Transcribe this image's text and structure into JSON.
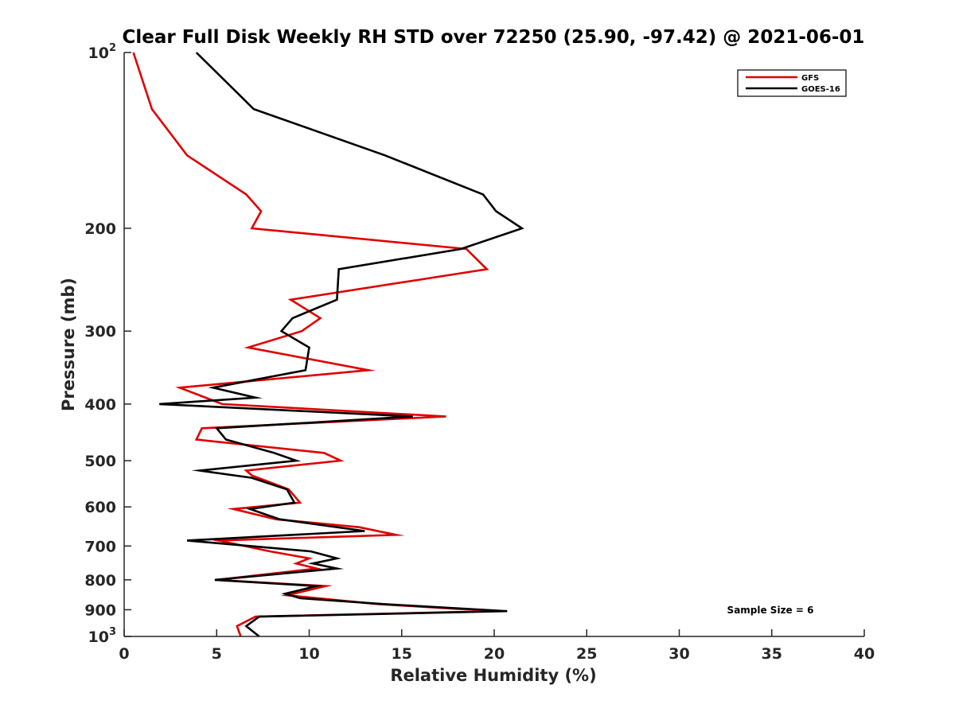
{
  "chart_data": {
    "type": "line",
    "title": "Clear Full Disk Weekly RH STD over 72250 (25.90, -97.42) @ 2021-06-01",
    "xlabel": "Relative Humidity (%)",
    "ylabel": "Pressure (mb)",
    "xlim": [
      0,
      40
    ],
    "ylim": [
      100,
      1000
    ],
    "y_scale": "log",
    "y_reversed": true,
    "x_ticks": [
      "0",
      "5",
      "10",
      "15",
      "20",
      "25",
      "30",
      "35",
      "40"
    ],
    "y_ticks": [
      {
        "value": 100,
        "base": "10",
        "exp": "2"
      },
      {
        "value": 200,
        "base": "200",
        "exp": ""
      },
      {
        "value": 300,
        "base": "300",
        "exp": ""
      },
      {
        "value": 400,
        "base": "400",
        "exp": ""
      },
      {
        "value": 500,
        "base": "500",
        "exp": ""
      },
      {
        "value": 600,
        "base": "600",
        "exp": ""
      },
      {
        "value": 700,
        "base": "700",
        "exp": ""
      },
      {
        "value": 800,
        "base": "800",
        "exp": ""
      },
      {
        "value": 900,
        "base": "900",
        "exp": ""
      },
      {
        "value": 1000,
        "base": "10",
        "exp": "3"
      }
    ],
    "legend_position": "top-right",
    "annotation": "Sample Size = 6",
    "series": [
      {
        "name": "GFS",
        "color": "#e00000",
        "points": [
          [
            0.5,
            100
          ],
          [
            1.5,
            125
          ],
          [
            3.4,
            150
          ],
          [
            6.6,
            175
          ],
          [
            7.4,
            187
          ],
          [
            6.9,
            200
          ],
          [
            18.5,
            217
          ],
          [
            19.6,
            235
          ],
          [
            9.0,
            265
          ],
          [
            10.6,
            285
          ],
          [
            9.6,
            300
          ],
          [
            6.7,
            320
          ],
          [
            13.2,
            350
          ],
          [
            3.0,
            375
          ],
          [
            5.3,
            400
          ],
          [
            17.4,
            420
          ],
          [
            4.2,
            440
          ],
          [
            3.9,
            460
          ],
          [
            10.8,
            485
          ],
          [
            11.7,
            500
          ],
          [
            6.6,
            520
          ],
          [
            6.9,
            530
          ],
          [
            8.9,
            560
          ],
          [
            9.5,
            590
          ],
          [
            5.9,
            605
          ],
          [
            8.2,
            630
          ],
          [
            12.7,
            650
          ],
          [
            14.7,
            670
          ],
          [
            5.1,
            685
          ],
          [
            7.9,
            715
          ],
          [
            10.0,
            735
          ],
          [
            9.3,
            750
          ],
          [
            10.4,
            765
          ],
          [
            5.0,
            800
          ],
          [
            10.9,
            820
          ],
          [
            8.8,
            850
          ],
          [
            13.7,
            880
          ],
          [
            20.0,
            905
          ],
          [
            7.1,
            925
          ],
          [
            6.1,
            960
          ],
          [
            6.3,
            1000
          ]
        ]
      },
      {
        "name": "GOES-16",
        "color": "#000000",
        "points": [
          [
            3.9,
            100
          ],
          [
            7.0,
            125
          ],
          [
            14.1,
            150
          ],
          [
            19.4,
            175
          ],
          [
            20.1,
            187
          ],
          [
            21.5,
            200
          ],
          [
            18.2,
            217
          ],
          [
            11.6,
            235
          ],
          [
            11.5,
            265
          ],
          [
            9.1,
            285
          ],
          [
            8.5,
            300
          ],
          [
            10.0,
            320
          ],
          [
            9.8,
            350
          ],
          [
            4.8,
            375
          ],
          [
            7.1,
            390
          ],
          [
            1.9,
            400
          ],
          [
            15.6,
            420
          ],
          [
            5.0,
            440
          ],
          [
            5.5,
            460
          ],
          [
            8.1,
            485
          ],
          [
            9.3,
            500
          ],
          [
            4.1,
            520
          ],
          [
            6.9,
            535
          ],
          [
            8.8,
            560
          ],
          [
            9.2,
            590
          ],
          [
            6.8,
            605
          ],
          [
            8.4,
            630
          ],
          [
            13.0,
            660
          ],
          [
            3.4,
            685
          ],
          [
            10.1,
            715
          ],
          [
            11.5,
            735
          ],
          [
            10.2,
            750
          ],
          [
            11.5,
            765
          ],
          [
            4.9,
            800
          ],
          [
            10.4,
            820
          ],
          [
            8.7,
            845
          ],
          [
            9.5,
            860
          ],
          [
            14.0,
            880
          ],
          [
            20.7,
            905
          ],
          [
            7.3,
            925
          ],
          [
            6.6,
            960
          ],
          [
            7.3,
            1000
          ]
        ]
      }
    ]
  }
}
